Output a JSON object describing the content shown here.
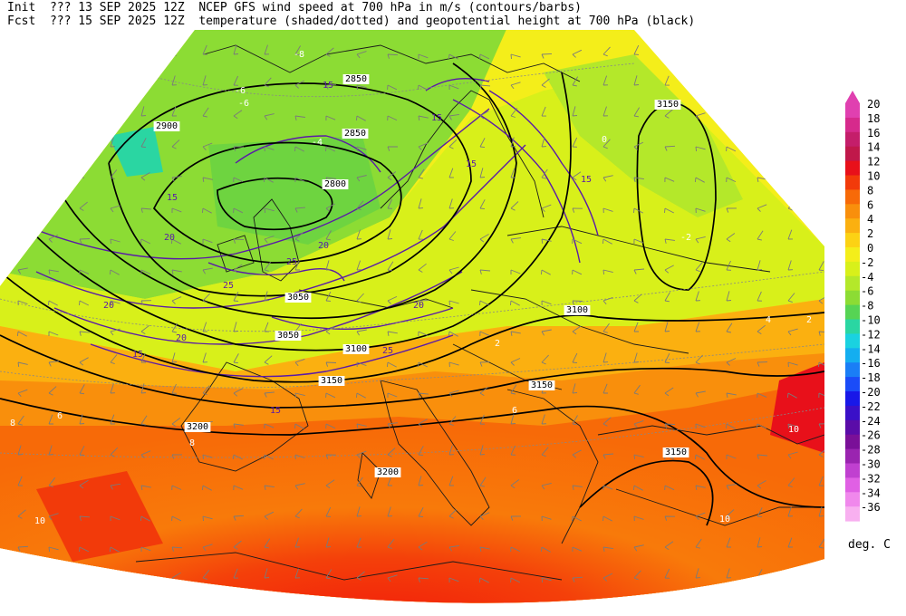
{
  "header": {
    "init_label": "Init",
    "init_value": "??? 13 SEP 2025 12Z",
    "fcst_label": "Fcst",
    "fcst_value": "??? 15 SEP 2025 12Z",
    "title_line1": "NCEP GFS wind speed at 700 hPa in m/s (contours/barbs)",
    "title_line2": "temperature (shaded/dotted) and geopotential height at 700 hPa (black)"
  },
  "legend": {
    "units": "deg. C",
    "levels": [
      {
        "value": "20",
        "color": "#e040b0"
      },
      {
        "value": "18",
        "color": "#d62a8c"
      },
      {
        "value": "16",
        "color": "#c41e6a"
      },
      {
        "value": "14",
        "color": "#c0184a"
      },
      {
        "value": "12",
        "color": "#e8101a"
      },
      {
        "value": "10",
        "color": "#f23a0a"
      },
      {
        "value": "8",
        "color": "#f76a08"
      },
      {
        "value": "6",
        "color": "#f98f0c"
      },
      {
        "value": "4",
        "color": "#fbb010"
      },
      {
        "value": "2",
        "color": "#fcd214"
      },
      {
        "value": "0",
        "color": "#f4ee1a"
      },
      {
        "value": "-2",
        "color": "#d8f01a"
      },
      {
        "value": "-4",
        "color": "#b4e82a"
      },
      {
        "value": "-6",
        "color": "#8cdc34"
      },
      {
        "value": "-8",
        "color": "#56d454"
      },
      {
        "value": "-10",
        "color": "#2ad6a2"
      },
      {
        "value": "-12",
        "color": "#1ad2e0"
      },
      {
        "value": "-14",
        "color": "#14aef0"
      },
      {
        "value": "-16",
        "color": "#1a7ef6"
      },
      {
        "value": "-18",
        "color": "#1a4cf8"
      },
      {
        "value": "-20",
        "color": "#1818e8"
      },
      {
        "value": "-22",
        "color": "#3a10c8"
      },
      {
        "value": "-24",
        "color": "#5a0ca8"
      },
      {
        "value": "-26",
        "color": "#7a1098"
      },
      {
        "value": "-28",
        "color": "#9a24b0"
      },
      {
        "value": "-30",
        "color": "#c040d0"
      },
      {
        "value": "-32",
        "color": "#e060e4"
      },
      {
        "value": "-34",
        "color": "#f088ec"
      },
      {
        "value": "-36",
        "color": "#f8b0f0"
      }
    ]
  },
  "height_labels": [
    "2850",
    "2850",
    "2900",
    "2800",
    "3050",
    "3050",
    "3100",
    "3100",
    "3150",
    "3150",
    "3150",
    "3200",
    "3200",
    "3150"
  ],
  "wind_labels": [
    "15",
    "15",
    "15",
    "15",
    "15",
    "20",
    "20",
    "20",
    "20",
    "20",
    "25",
    "25",
    "25",
    "15",
    "15"
  ],
  "temp_labels": [
    "-8",
    "-6",
    "-6",
    "-4",
    "-2",
    "0",
    "2",
    "2",
    "4",
    "6",
    "6",
    "8",
    "8",
    "10",
    "10",
    "10"
  ]
}
